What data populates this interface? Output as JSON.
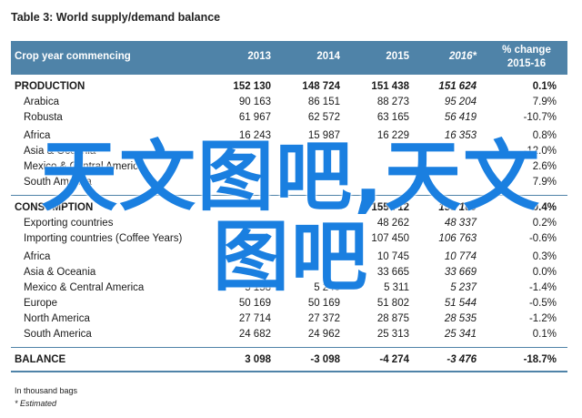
{
  "title": "Table 3: World supply/demand balance",
  "header": {
    "crop_label": "Crop year commencing",
    "years": [
      "2013",
      "2014",
      "2015",
      "2016*"
    ],
    "change_line1": "% change",
    "change_line2": "2015-16"
  },
  "production": {
    "label": "PRODUCTION",
    "values": [
      "152 130",
      "148 724",
      "151 438",
      "151 624",
      "0.1%"
    ],
    "rows": [
      {
        "label": "Arabica",
        "values": [
          "90 163",
          "86 151",
          "88 273",
          "95 204",
          "7.9%"
        ]
      },
      {
        "label": "Robusta",
        "values": [
          "61 967",
          "62 572",
          "63 165",
          "56 419",
          "-10.7%"
        ]
      }
    ],
    "regions": [
      {
        "label": "Africa",
        "values": [
          "16 243",
          "15 987",
          "16 229",
          "16 353",
          "0.8%"
        ]
      },
      {
        "label": "Asia & Oceania",
        "values": [
          "",
          "",
          "",
          "",
          "-12.0%"
        ]
      },
      {
        "label": "Mexico & Central America",
        "values": [
          "",
          "",
          "",
          "",
          "2.6%"
        ]
      },
      {
        "label": "South America",
        "values": [
          "",
          "",
          "",
          "",
          "7.9%"
        ]
      }
    ]
  },
  "consumption": {
    "label": "CONSUMPTION",
    "values": [
      "",
      "",
      "155 712",
      "155 100",
      "-0.4%"
    ],
    "rows": [
      {
        "label": "Exporting countries",
        "values": [
          "",
          "",
          "48 262",
          "48 337",
          "0.2%"
        ]
      },
      {
        "label": "Importing countries (Coffee Years)",
        "values": [
          "",
          "",
          "107 450",
          "106 763",
          "-0.6%"
        ]
      }
    ],
    "regions": [
      {
        "label": "Africa",
        "values": [
          "",
          "",
          "10 745",
          "10 774",
          "0.3%"
        ]
      },
      {
        "label": "Asia & Oceania",
        "values": [
          "",
          "",
          "33 665",
          "33 669",
          "0.0%"
        ]
      },
      {
        "label": "Mexico & Central America",
        "values": [
          "5 158",
          "5 240",
          "5 311",
          "5 237",
          "-1.4%"
        ]
      },
      {
        "label": "Europe",
        "values": [
          "50 169",
          "50 169",
          "51 802",
          "51 544",
          "-0.5%"
        ]
      },
      {
        "label": "North America",
        "values": [
          "27 714",
          "27 372",
          "28 875",
          "28 535",
          "-1.2%"
        ]
      },
      {
        "label": "South America",
        "values": [
          "24 682",
          "24 962",
          "25 313",
          "25 341",
          "0.1%"
        ]
      }
    ]
  },
  "balance": {
    "label": "BALANCE",
    "values": [
      "3 098",
      "-3 098",
      "-4 274",
      "-3 476",
      "-18.7%"
    ]
  },
  "notes": {
    "unit": "In thousand bags",
    "estimated": "* Estimated"
  },
  "watermark": "天文图吧,天文图吧"
}
